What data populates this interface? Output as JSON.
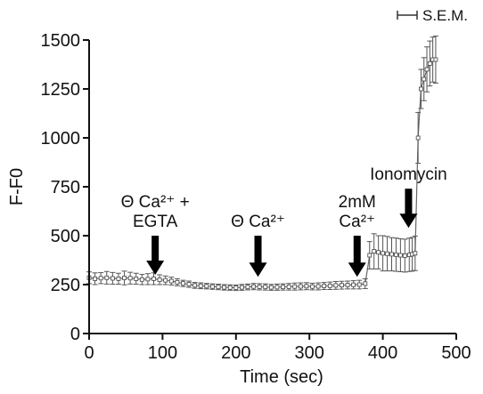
{
  "chart_data": {
    "type": "line",
    "xlabel": "Time (sec)",
    "ylabel": "F-F0",
    "xlim": [
      0,
      500
    ],
    "ylim": [
      0,
      1500
    ],
    "x_ticks": [
      0,
      100,
      200,
      300,
      400,
      500
    ],
    "y_ticks": [
      0,
      250,
      500,
      750,
      1000,
      1250,
      1500
    ],
    "grid": false,
    "legend": {
      "label": "S.E.M.",
      "position": "top-right"
    },
    "line_color": "#666666",
    "series": [
      {
        "x": [
          0,
          8,
          16,
          24,
          32,
          40,
          48,
          56,
          64,
          72,
          80,
          88,
          96,
          104,
          112,
          120,
          128,
          136,
          144,
          152,
          160,
          168,
          176,
          184,
          192,
          200,
          208,
          216,
          224,
          232,
          240,
          248,
          256,
          264,
          272,
          280,
          288,
          296,
          304,
          312,
          320,
          328,
          336,
          344,
          352,
          360,
          368,
          376,
          382,
          388,
          394,
          400,
          406,
          412,
          418,
          424,
          430,
          436,
          440,
          444,
          448,
          452,
          456,
          460,
          464,
          468,
          472
        ],
        "y": [
          285,
          280,
          283,
          285,
          282,
          280,
          284,
          283,
          280,
          276,
          278,
          280,
          275,
          272,
          268,
          262,
          256,
          252,
          246,
          244,
          242,
          240,
          238,
          236,
          235,
          234,
          236,
          238,
          240,
          239,
          238,
          236,
          237,
          238,
          239,
          240,
          241,
          242,
          240,
          241,
          243,
          244,
          246,
          247,
          248,
          249,
          250,
          255,
          400,
          420,
          415,
          410,
          408,
          405,
          403,
          400,
          398,
          402,
          405,
          410,
          1000,
          1250,
          1300,
          1350,
          1380,
          1400,
          1400
        ],
        "err": [
          30,
          30,
          28,
          32,
          30,
          28,
          35,
          30,
          28,
          26,
          28,
          30,
          25,
          22,
          20,
          18,
          16,
          16,
          15,
          15,
          14,
          14,
          14,
          14,
          14,
          14,
          15,
          15,
          16,
          16,
          16,
          15,
          16,
          16,
          17,
          18,
          18,
          18,
          17,
          18,
          18,
          19,
          20,
          20,
          20,
          21,
          22,
          25,
          70,
          90,
          85,
          90,
          88,
          85,
          85,
          84,
          84,
          85,
          86,
          88,
          130,
          100,
          110,
          115,
          115,
          115,
          120
        ]
      }
    ],
    "annotations": [
      {
        "lines": [
          "Θ Ca²⁺ +",
          "EGTA"
        ],
        "arrow_x": 90,
        "arrow_tip_y": 300,
        "arrow_base_y": 500
      },
      {
        "lines": [
          "Θ Ca²⁺"
        ],
        "arrow_x": 230,
        "arrow_tip_y": 290,
        "arrow_base_y": 500
      },
      {
        "lines": [
          "2mM",
          "Ca²⁺"
        ],
        "arrow_x": 365,
        "arrow_tip_y": 290,
        "arrow_base_y": 500
      },
      {
        "lines": [
          "Ionomycin"
        ],
        "arrow_x": 435,
        "arrow_tip_y": 540,
        "arrow_base_y": 740
      }
    ]
  }
}
